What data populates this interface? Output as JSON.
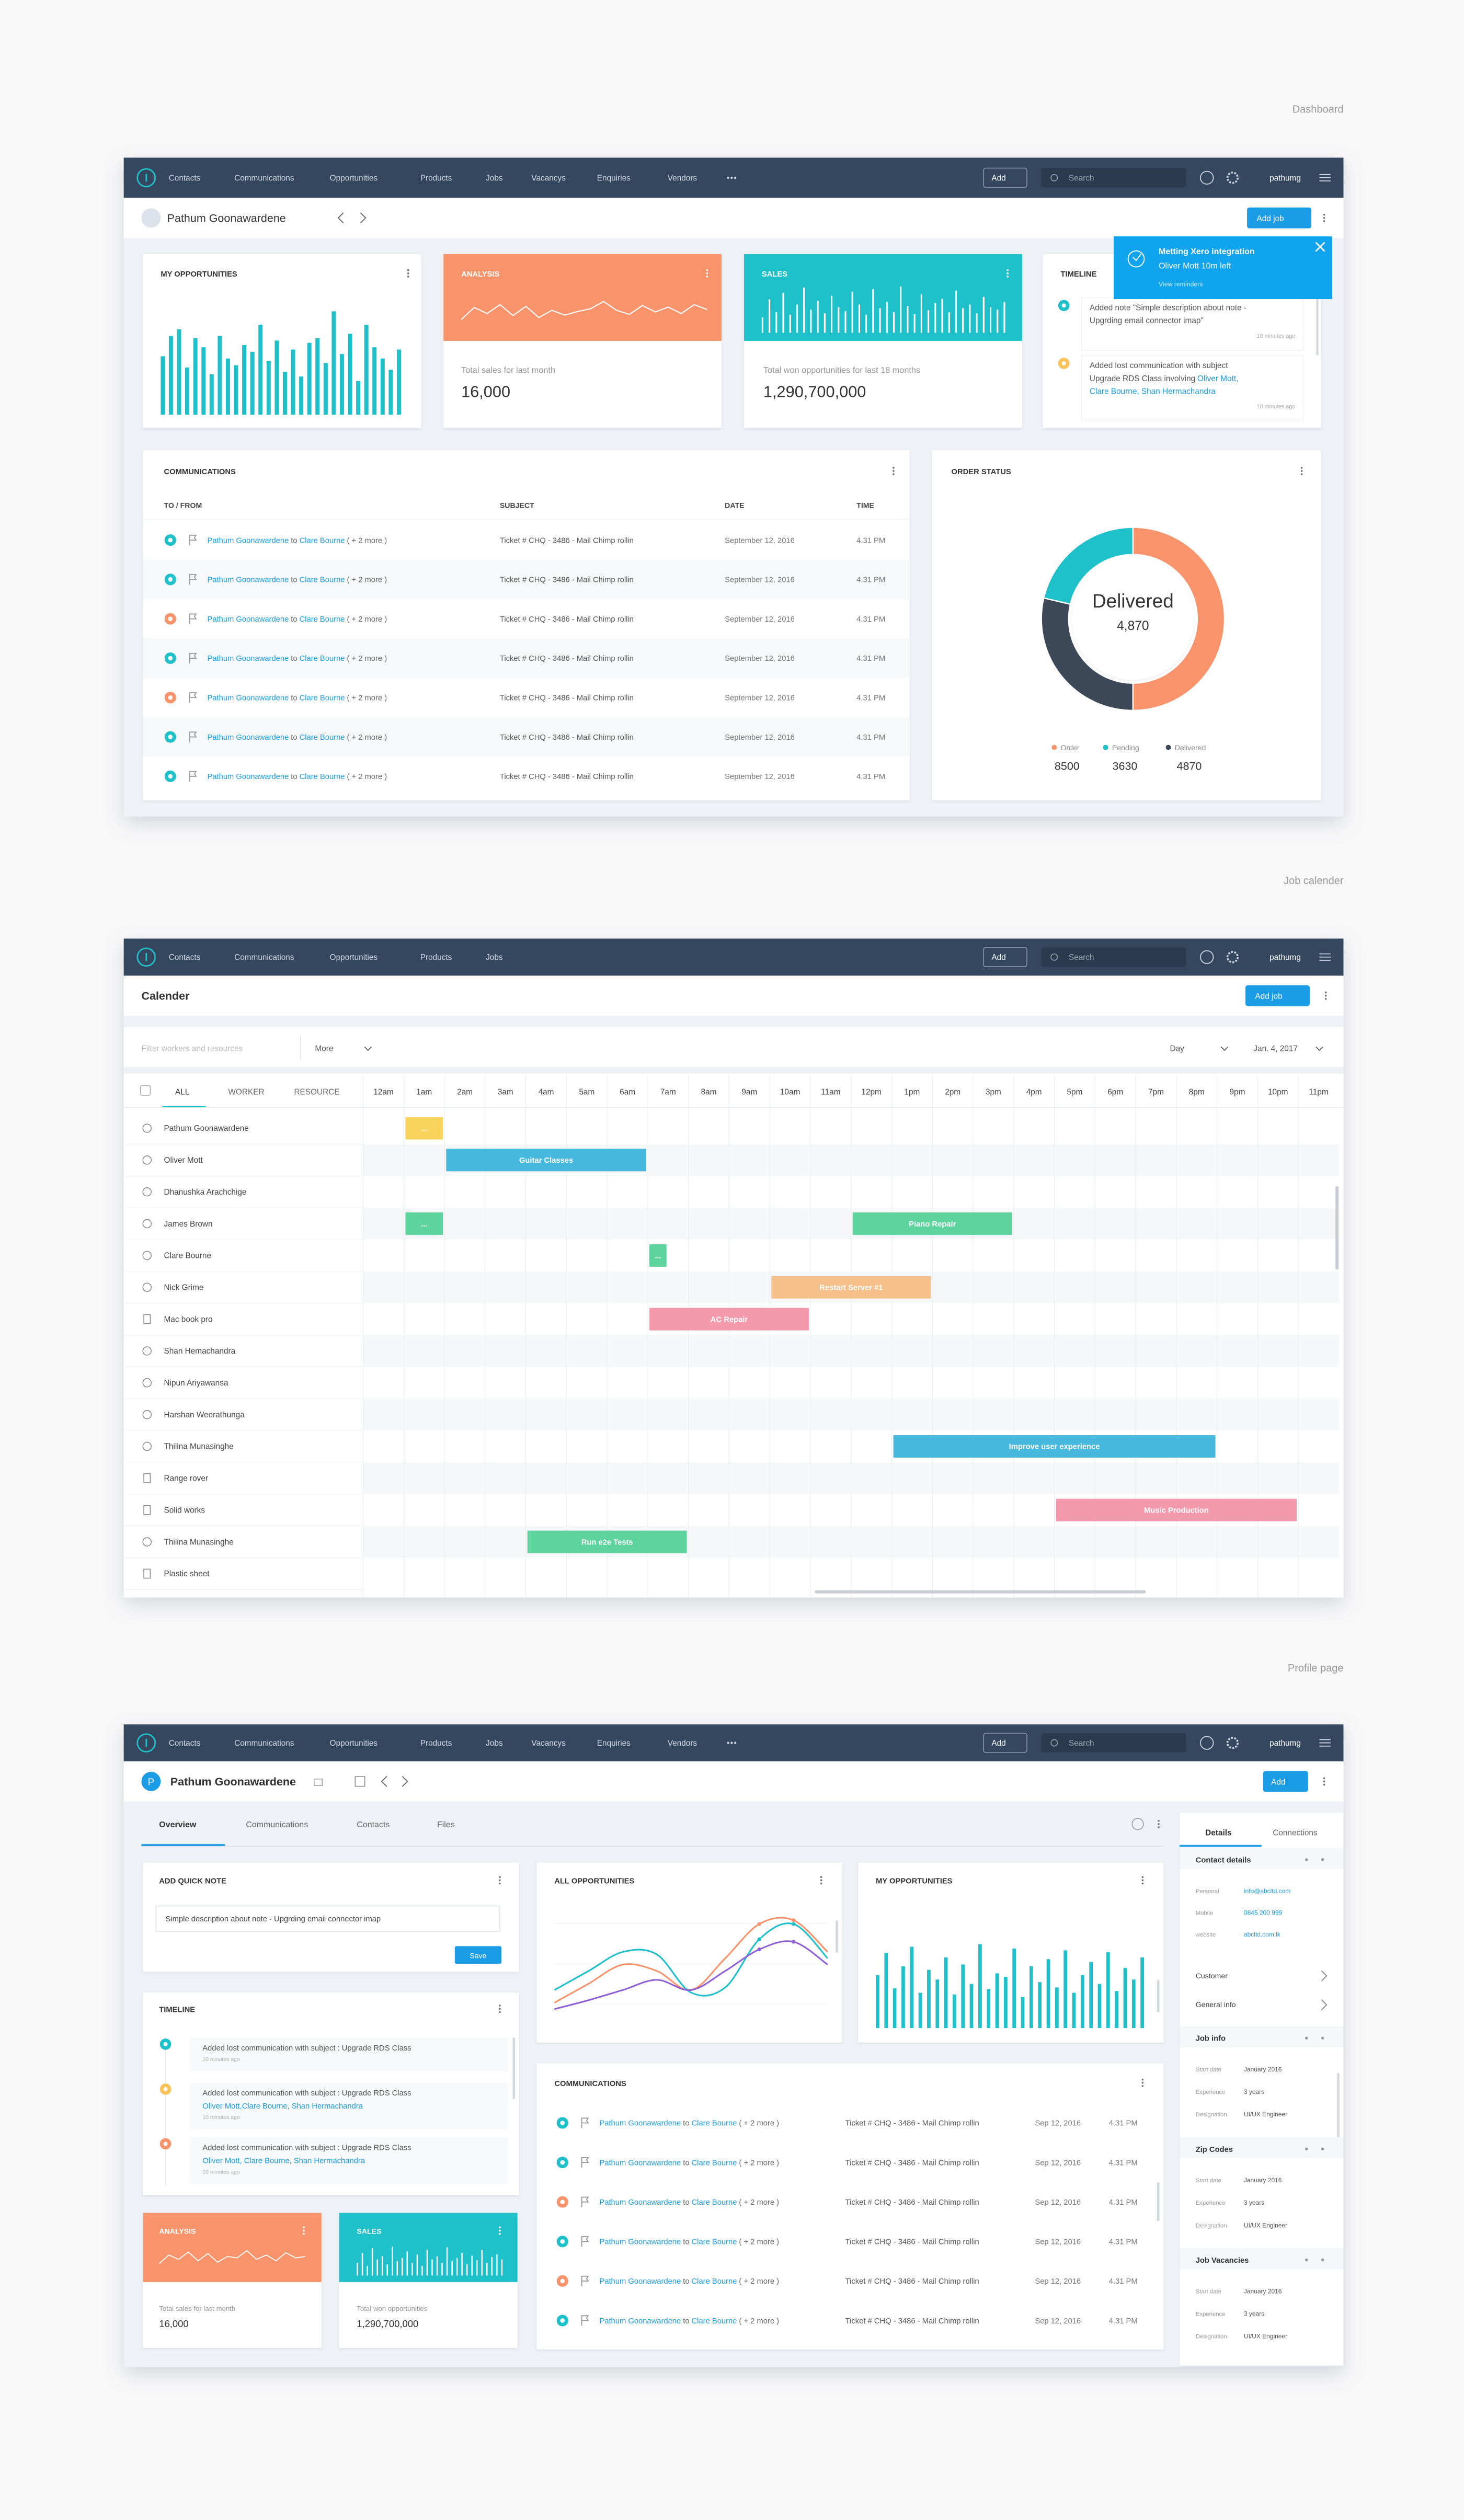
{
  "section_labels": [
    "Dashboard",
    "Job calender",
    "Profile page"
  ],
  "nav": {
    "items": [
      "Contacts",
      "Communications",
      "Opportunities",
      "Products",
      "Jobs",
      "Vacancys",
      "Enquiries",
      "Vendors"
    ],
    "add": "Add",
    "search": "Search",
    "user": "pathumg"
  },
  "dashboard": {
    "contact_name": "Pathum Goonawardene",
    "add_job": "Add job",
    "my_opportunities": {
      "title": "MY OPPORTUNITIES",
      "color": "#1ec0c9",
      "values": [
        52,
        70,
        76,
        42,
        68,
        60,
        36,
        70,
        50,
        44,
        62,
        56,
        80,
        48,
        66,
        38,
        58,
        34,
        64,
        68,
        46,
        92,
        54,
        72,
        30,
        80,
        60,
        50,
        40,
        58
      ]
    },
    "analysis": {
      "title": "ANALYSIS",
      "color": "#f9936c",
      "values": [
        25,
        55,
        40,
        62,
        35,
        58,
        30,
        48,
        36,
        45,
        52,
        70,
        48,
        38,
        60,
        44,
        56,
        40,
        62,
        50
      ],
      "caption": "Total sales for last month",
      "total": "16,000"
    },
    "sales": {
      "title": "SALES",
      "color": "#1ec0c9",
      "values": [
        30,
        65,
        40,
        78,
        35,
        55,
        88,
        45,
        62,
        38,
        72,
        50,
        42,
        80,
        55,
        35,
        85,
        48,
        60,
        40,
        90,
        52,
        36,
        75,
        44,
        58,
        66,
        40,
        82,
        48,
        55,
        38,
        70,
        50,
        45,
        60
      ],
      "caption": "Total won opportunities for last 18 months",
      "total": "1,290,700,000"
    },
    "timeline": {
      "title": "TIMELINE",
      "items": [
        {
          "color": "#1ec0c9",
          "lines": [
            [
              {
                "text": "Added note \"Simple description about note -"
              }
            ],
            [
              {
                "text": "Upgrding email connector imap\""
              }
            ]
          ],
          "time": "10 minutes ago"
        },
        {
          "color": "#f9c25a",
          "lines": [
            [
              {
                "text": "Added lost communication with subject"
              }
            ],
            [
              {
                "text": "Upgrade RDS Class involving"
              },
              {
                "text": "Oliver Mott,",
                "link": true
              }
            ],
            [
              {
                "text": "Clare Bourne, Shan Hermachandra",
                "link": true
              }
            ]
          ],
          "time": "10 minutes ago"
        }
      ]
    },
    "notification": {
      "title": "Metting Xero integration",
      "detail": "Oliver Mott 10m left",
      "link": "View reminders"
    },
    "communications": {
      "title": "COMMUNICATIONS",
      "columns": [
        "TO / FROM",
        "SUBJECT",
        "DATE",
        "TIME"
      ],
      "rows": [
        {
          "icon_color": "#1ec0c9",
          "from": "Pathum Goonawardene",
          "connector": "to",
          "to": "Clare Bourne",
          "more": "( + 2 more )",
          "subject": "Ticket # CHQ - 3486 - Mail Chimp rollin",
          "date": "September 12, 2016",
          "time": "4.31 PM"
        },
        {
          "icon_color": "#1ec0c9",
          "from": "Pathum Goonawardene",
          "connector": "to",
          "to": "Clare Bourne",
          "more": "( + 2 more )",
          "subject": "Ticket # CHQ - 3486 - Mail Chimp rollin",
          "date": "September 12, 2016",
          "time": "4.31 PM"
        },
        {
          "icon_color": "#f9936c",
          "from": "Pathum Goonawardene",
          "connector": "to",
          "to": "Clare Bourne",
          "more": "( + 2 more )",
          "subject": "Ticket # CHQ - 3486 - Mail Chimp rollin",
          "date": "September 12, 2016",
          "time": "4.31 PM"
        },
        {
          "icon_color": "#1ec0c9",
          "from": "Pathum Goonawardene",
          "connector": "to",
          "to": "Clare Bourne",
          "more": "( + 2 more )",
          "subject": "Ticket # CHQ - 3486 - Mail Chimp rollin",
          "date": "September 12, 2016",
          "time": "4.31 PM"
        },
        {
          "icon_color": "#f9936c",
          "from": "Pathum Goonawardene",
          "connector": "to",
          "to": "Clare Bourne",
          "more": "( + 2 more )",
          "subject": "Ticket # CHQ - 3486 - Mail Chimp rollin",
          "date": "September 12, 2016",
          "time": "4.31 PM"
        },
        {
          "icon_color": "#1ec0c9",
          "from": "Pathum Goonawardene",
          "connector": "to",
          "to": "Clare Bourne",
          "more": "( + 2 more )",
          "subject": "Ticket # CHQ - 3486 - Mail Chimp rollin",
          "date": "September 12, 2016",
          "time": "4.31 PM"
        },
        {
          "icon_color": "#1ec0c9",
          "from": "Pathum Goonawardene",
          "connector": "to",
          "to": "Clare Bourne",
          "more": "( + 2 more )",
          "subject": "Ticket # CHQ - 3486 - Mail Chimp rollin",
          "date": "September 12, 2016",
          "time": "4.31 PM"
        }
      ]
    },
    "order_status": {
      "title": "ORDER STATUS",
      "center_label": "Delivered",
      "center_value": "4,870",
      "series": [
        {
          "name": "Order",
          "color": "#f9936c",
          "value": 8500
        },
        {
          "name": "Pending",
          "color": "#1ec0c9",
          "value": 3630
        },
        {
          "name": "Delivered",
          "color": "#3d4859",
          "value": 4870
        }
      ]
    }
  },
  "calendar": {
    "title": "Calender",
    "add_job": "Add job",
    "filter": "Filter workers and resources",
    "more": "More",
    "view": "Day",
    "date": "Jan. 4, 2017",
    "tabs": [
      "ALL",
      "WORKER",
      "RESOURCE"
    ],
    "hours": [
      "12am",
      "1am",
      "2am",
      "3am",
      "4am",
      "5am",
      "6am",
      "7am",
      "8am",
      "9am",
      "10am",
      "11am",
      "12pm",
      "1pm",
      "2pm",
      "3pm",
      "4pm",
      "5pm",
      "6pm",
      "7pm",
      "8pm",
      "9pm",
      "10pm",
      "11pm"
    ],
    "resources": [
      {
        "name": "Pathum Goonawardene",
        "icon": "person",
        "events": [
          {
            "start": 1,
            "end": 2,
            "label": "...",
            "color": "#f9d35c"
          }
        ]
      },
      {
        "name": "Oliver Mott",
        "icon": "person",
        "events": [
          {
            "start": 2,
            "end": 7,
            "label": "Guitar Classes",
            "color": "#47b8de"
          }
        ]
      },
      {
        "name": "Dhanushka Arachchige",
        "icon": "person",
        "events": []
      },
      {
        "name": "James Brown",
        "icon": "person",
        "events": [
          {
            "start": 1,
            "end": 2,
            "label": "...",
            "color": "#5dd39e"
          },
          {
            "start": 12,
            "end": 16,
            "label": "Piano Repair",
            "color": "#5dd39e"
          }
        ]
      },
      {
        "name": "Clare Bourne",
        "icon": "person",
        "events": [
          {
            "start": 7,
            "end": 7.5,
            "label": "...",
            "color": "#5dd39e"
          }
        ]
      },
      {
        "name": "Nick Grime",
        "icon": "person",
        "events": [
          {
            "start": 10,
            "end": 14,
            "label": "Restart Server #1",
            "color": "#f5c08a"
          }
        ]
      },
      {
        "name": "Mac book pro",
        "icon": "resource",
        "events": [
          {
            "start": 7,
            "end": 11,
            "label": "AC Repair",
            "color": "#f59aac"
          }
        ]
      },
      {
        "name": "Shan Hemachandra",
        "icon": "person",
        "events": []
      },
      {
        "name": "Nipun Ariyawansa",
        "icon": "person",
        "events": []
      },
      {
        "name": "Harshan Weerathunga",
        "icon": "person",
        "events": []
      },
      {
        "name": "Thilina Munasinghe",
        "icon": "person",
        "events": [
          {
            "start": 13,
            "end": 21,
            "label": "Improve user experience",
            "color": "#47b8de"
          }
        ]
      },
      {
        "name": "Range rover",
        "icon": "resource",
        "events": []
      },
      {
        "name": "Solid works",
        "icon": "resource",
        "events": [
          {
            "start": 17,
            "end": 23,
            "label": "Music Production",
            "color": "#f59aac"
          }
        ]
      },
      {
        "name": "Thilina Munasinghe",
        "icon": "person",
        "events": [
          {
            "start": 4,
            "end": 8,
            "label": "Run e2e Tests",
            "color": "#5dd39e"
          }
        ]
      },
      {
        "name": "Plastic sheet",
        "icon": "resource",
        "events": []
      }
    ]
  },
  "profile": {
    "avatar_initial": "P",
    "contact_name": "Pathum Goonawardene",
    "add": "Add",
    "tabs": [
      "Overview",
      "Communications",
      "Contacts",
      "Files"
    ],
    "quick_note": {
      "title": "ADD QUICK NOTE",
      "text": "Simple description about note - Upgrding email connector imap",
      "save": "Save"
    },
    "timeline": {
      "title": "TIMELINE",
      "items": [
        {
          "color": "#1ec0c9",
          "lines": [
            [
              {
                "text": "Added lost communication with subject : Upgrade RDS Class"
              }
            ]
          ],
          "time": "10 minutes ago"
        },
        {
          "color": "#f9c25a",
          "lines": [
            [
              {
                "text": "Added lost communication with subject : Upgrade RDS Class"
              }
            ],
            [
              {
                "text": "Oliver Mott,Clare Bourne, Shan Hermachandra",
                "link": true
              }
            ]
          ],
          "time": "10 minutes ago"
        },
        {
          "color": "#f9936c",
          "lines": [
            [
              {
                "text": "Added lost communication with subject : Upgrade RDS Class"
              }
            ],
            [
              {
                "text": "Oliver Mott, Clare Bourne, Shan Hermachandra",
                "link": true
              }
            ]
          ],
          "time": "10 minutes ago"
        }
      ]
    },
    "analysis": {
      "title": "ANALYSIS",
      "color": "#f9936c",
      "values": [
        30,
        60,
        45,
        70,
        40,
        65,
        35,
        55,
        50,
        75,
        45,
        60,
        40,
        68,
        50,
        55
      ],
      "caption": "Total sales for last month",
      "total": "16,000"
    },
    "sales": {
      "title": "SALES",
      "color": "#1ec0c9",
      "values": [
        40,
        70,
        30,
        85,
        50,
        60,
        35,
        90,
        45,
        55,
        75,
        40,
        65,
        30,
        80,
        50,
        60,
        40,
        88,
        45,
        55,
        70,
        35,
        62,
        48,
        80,
        40,
        58,
        66,
        50
      ],
      "caption": "Total won opportunities",
      "total": "1,290,700,000"
    },
    "all_opportunities": {
      "title": "ALL OPPORTUNITIES",
      "series": [
        {
          "color": "#f9936c",
          "values": [
            20,
            35,
            50,
            45,
            30,
            55,
            82,
            85,
            60
          ]
        },
        {
          "color": "#1ec0c9",
          "values": [
            30,
            45,
            60,
            58,
            28,
            32,
            70,
            82,
            55
          ]
        },
        {
          "color": "#8e5fd6",
          "values": [
            15,
            22,
            30,
            38,
            30,
            45,
            62,
            68,
            50
          ]
        }
      ]
    },
    "my_opportunities": {
      "title": "MY OPPORTUNITIES",
      "color": "#1ec0c9",
      "values": [
        60,
        85,
        45,
        70,
        92,
        40,
        66,
        55,
        80,
        38,
        72,
        50,
        95,
        44,
        62,
        58,
        90,
        35,
        70,
        52,
        78,
        46,
        88,
        40,
        60,
        75,
        50,
        86,
        42,
        68,
        55,
        80
      ]
    },
    "communications": {
      "title": "COMMUNICATIONS",
      "rows": [
        {
          "icon_color": "#1ec0c9",
          "from": "Pathum Goonawardene",
          "connector": "to",
          "to": "Clare Bourne",
          "more": "( + 2 more )",
          "subject": "Ticket # CHQ - 3486 - Mail Chimp rollin",
          "date": "Sep 12, 2016",
          "time": "4.31 PM"
        },
        {
          "icon_color": "#1ec0c9",
          "from": "Pathum Goonawardene",
          "connector": "to",
          "to": "Clare Bourne",
          "more": "( + 2 more )",
          "subject": "Ticket # CHQ - 3486 - Mail Chimp rollin",
          "date": "Sep 12, 2016",
          "time": "4.31 PM"
        },
        {
          "icon_color": "#f9936c",
          "from": "Pathum Goonawardene",
          "connector": "to",
          "to": "Clare Bourne",
          "more": "( + 2 more )",
          "subject": "Ticket # CHQ - 3486 - Mail Chimp rollin",
          "date": "Sep 12, 2016",
          "time": "4.31 PM"
        },
        {
          "icon_color": "#1ec0c9",
          "from": "Pathum Goonawardene",
          "connector": "to",
          "to": "Clare Bourne",
          "more": "( + 2 more )",
          "subject": "Ticket # CHQ - 3486 - Mail Chimp rollin",
          "date": "Sep 12, 2016",
          "time": "4.31 PM"
        },
        {
          "icon_color": "#f9936c",
          "from": "Pathum Goonawardene",
          "connector": "to",
          "to": "Clare Bourne",
          "more": "( + 2 more )",
          "subject": "Ticket # CHQ - 3486 - Mail Chimp rollin",
          "date": "Sep 12, 2016",
          "time": "4.31 PM"
        },
        {
          "icon_color": "#1ec0c9",
          "from": "Pathum Goonawardene",
          "connector": "to",
          "to": "Clare Bourne",
          "more": "( + 2 more )",
          "subject": "Ticket # CHQ - 3486 - Mail Chimp rollin",
          "date": "Sep 12, 2016",
          "time": "4.31 PM"
        }
      ]
    },
    "side_panel": {
      "tabs": [
        "Details",
        "Connections"
      ],
      "contact_details": {
        "title": "Contact details",
        "fields": [
          {
            "label": "Personal",
            "value": "info@abcltd.com"
          },
          {
            "label": "Mobile",
            "value": "0845 200 999"
          },
          {
            "label": "website",
            "value": "abcltd.com.lk"
          }
        ]
      },
      "links": [
        "Customer",
        "General info"
      ],
      "groups": [
        {
          "title": "Job info",
          "fields": [
            {
              "label": "Start date",
              "value": "January 2016"
            },
            {
              "label": "Experience",
              "value": "3 years"
            },
            {
              "label": "Designation",
              "value": "UI/UX Engineer"
            }
          ]
        },
        {
          "title": "Zip Codes",
          "fields": [
            {
              "label": "Start date",
              "value": "January 2016"
            },
            {
              "label": "Experience",
              "value": "3 years"
            },
            {
              "label": "Designation",
              "value": "UI/UX Engineer"
            }
          ]
        },
        {
          "title": "Job Vacancies",
          "fields": [
            {
              "label": "Start date",
              "value": "January 2016"
            },
            {
              "label": "Experience",
              "value": "3 years"
            },
            {
              "label": "Designation",
              "value": "UI/UX Engineer"
            }
          ]
        }
      ]
    }
  }
}
